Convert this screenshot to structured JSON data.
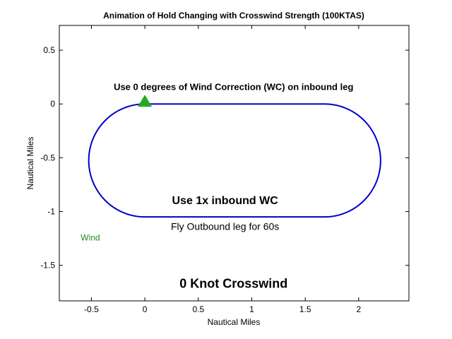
{
  "chart_data": {
    "type": "line",
    "title": "Animation of Hold Changing with Crosswind Strength (100KTAS)",
    "xlabel": "Nautical Miles",
    "ylabel": "Nautical Miles",
    "xlim": [
      -0.8,
      2.47
    ],
    "ylim": [
      -1.83,
      0.73
    ],
    "xticks": [
      -0.5,
      0,
      0.5,
      1,
      1.5,
      2
    ],
    "xtick_labels": [
      "-0.5",
      "0",
      "0.5",
      "1",
      "1.5",
      "2"
    ],
    "yticks": [
      0.5,
      0,
      -0.5,
      -1,
      -1.5
    ],
    "ytick_labels": [
      "0.5",
      "0",
      "-0.5",
      "-1",
      "-1.5"
    ],
    "grid": false,
    "series": [
      {
        "kind": "racetrack",
        "color": "#0000cc",
        "straight_x": [
          0,
          1.68
        ],
        "top_y": 0,
        "bottom_y": -1.05,
        "turn_radius": 0.525
      }
    ],
    "marker": {
      "shape": "triangle",
      "x": 0,
      "y": 0.02,
      "color": "#22aa22"
    },
    "annotations": {
      "inbound": {
        "text": "Use 0 degrees of Wind Correction (WC) on inbound leg",
        "x": 0.83,
        "y": 0.13
      },
      "outbound_wc": {
        "text": "Use 1x inbound WC",
        "x": 0.75,
        "y": -0.93
      },
      "outbound_time": {
        "text": "Fly Outbound leg for 60s",
        "x": 0.75,
        "y": -1.17
      },
      "crosswind": {
        "text": "0 Knot Crosswind",
        "x": 0.83,
        "y": -1.71
      },
      "wind": {
        "text": "Wind",
        "x": -0.6,
        "y": -1.27,
        "color": "#228b22"
      }
    }
  }
}
